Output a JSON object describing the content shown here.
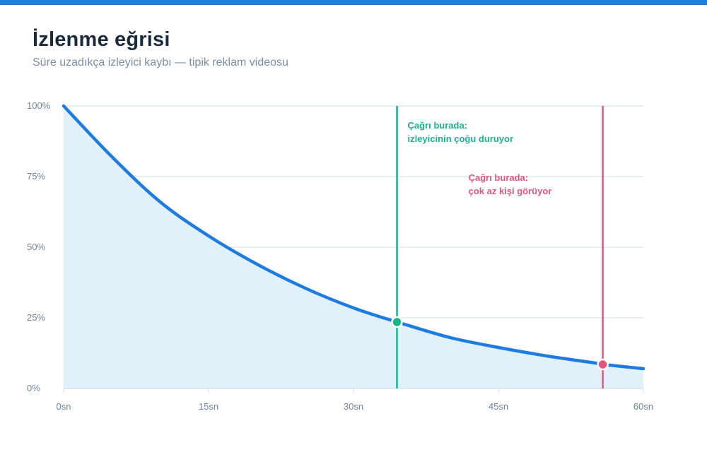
{
  "header": {
    "title": "İzlenme eğrisi",
    "subtitle": "Süre uzadıkça izleyici kaybı — tipik reklam videosu"
  },
  "colors": {
    "accent": "#1e7be0",
    "area_fill": "#e1f1fa",
    "grid": "#d4e3ec",
    "good": "#17b389",
    "bad": "#e2577d"
  },
  "chart_data": {
    "type": "area",
    "x": [
      0,
      5,
      10,
      15,
      20,
      25,
      30,
      34.5,
      35,
      40,
      45,
      50,
      55,
      55.8,
      60
    ],
    "series": [
      {
        "values": [
          100,
          82,
          66,
          54,
          44,
          35.5,
          28.5,
          23.5,
          23,
          18,
          14.5,
          11.5,
          9,
          8.5,
          7
        ]
      }
    ],
    "x_tick_labels": [
      "0sn",
      "15sn",
      "30sn",
      "45sn",
      "60sn"
    ],
    "y_tick_labels": [
      "0%",
      "25%",
      "50%",
      "75%",
      "100%"
    ],
    "xlim": [
      0,
      60
    ],
    "ylim": [
      0,
      100
    ],
    "grid": true,
    "markers": [
      {
        "x": 34.5,
        "y": 23.5,
        "line1": "Çağrı burada:",
        "line2": "izleyicinin çoğu duruyor",
        "color": "#17b389"
      },
      {
        "x": 55.8,
        "y": 8.5,
        "line1": "Çağrı burada:",
        "line2": "çok az kişi görüyor",
        "color": "#e2577d"
      }
    ]
  }
}
